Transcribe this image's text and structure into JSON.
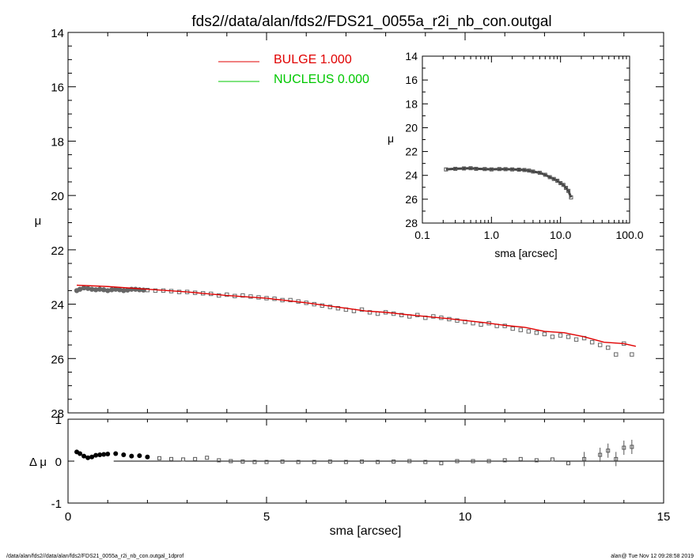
{
  "title": "fds2//data/alan/fds2/FDS21_0055a_r2i_nb_con.outgal",
  "footer_left": "/data/alan/fds2//data/alan/fds2/FDS21_0055a_r2i_nb_con.outgal_1dprof",
  "footer_right": "alan@  Tue Nov 12 09:28:58 2019",
  "legend": [
    {
      "label": "BULGE  1.000",
      "color": "#e00000"
    },
    {
      "label": "NUCLEUS  0.000",
      "color": "#00c800"
    }
  ],
  "chart_data": [
    {
      "type": "scatter",
      "panel": "main",
      "xlabel": "sma [arcsec]",
      "ylabel": "μ",
      "xlim": [
        0,
        15
      ],
      "ylim": [
        28,
        14
      ],
      "x_ticks": [
        "0",
        "5",
        "10",
        "15"
      ],
      "y_ticks": [
        "14",
        "16",
        "18",
        "20",
        "22",
        "24",
        "26",
        "28"
      ],
      "series": [
        {
          "role": "data",
          "color": "#666666",
          "x": [
            0.22,
            0.3,
            0.4,
            0.5,
            0.6,
            0.7,
            0.8,
            0.9,
            1.0,
            1.1,
            1.2,
            1.3,
            1.4,
            1.5,
            1.6,
            1.7,
            1.8,
            1.9,
            2.0,
            2.2,
            2.4,
            2.6,
            2.8,
            3.0,
            3.2,
            3.4,
            3.6,
            3.8,
            4.0,
            4.2,
            4.4,
            4.6,
            4.8,
            5.0,
            5.2,
            5.4,
            5.6,
            5.8,
            6.0,
            6.2,
            6.4,
            6.6,
            6.8,
            7.0,
            7.2,
            7.4,
            7.6,
            7.8,
            8.0,
            8.2,
            8.4,
            8.6,
            8.8,
            9.0,
            9.2,
            9.4,
            9.6,
            9.8,
            10.0,
            10.2,
            10.4,
            10.6,
            10.8,
            11.0,
            11.2,
            11.4,
            11.6,
            11.8,
            12.0,
            12.2,
            12.4,
            12.6,
            12.8,
            13.0,
            13.2,
            13.4,
            13.6,
            13.8,
            14.0,
            14.2
          ],
          "y": [
            23.5,
            23.45,
            23.4,
            23.42,
            23.45,
            23.47,
            23.45,
            23.47,
            23.5,
            23.47,
            23.45,
            23.47,
            23.5,
            23.48,
            23.45,
            23.45,
            23.47,
            23.48,
            23.48,
            23.5,
            23.5,
            23.52,
            23.55,
            23.55,
            23.58,
            23.6,
            23.62,
            23.68,
            23.65,
            23.7,
            23.68,
            23.72,
            23.75,
            23.78,
            23.8,
            23.85,
            23.85,
            23.9,
            23.95,
            24.0,
            24.05,
            24.1,
            24.15,
            24.2,
            24.25,
            24.2,
            24.3,
            24.35,
            24.3,
            24.35,
            24.4,
            24.45,
            24.4,
            24.5,
            24.45,
            24.5,
            24.55,
            24.6,
            24.65,
            24.7,
            24.75,
            24.7,
            24.8,
            24.8,
            24.9,
            24.95,
            25.0,
            25.05,
            25.1,
            25.2,
            25.15,
            25.2,
            25.3,
            25.25,
            25.4,
            25.5,
            25.6,
            25.85,
            25.45,
            25.85
          ]
        },
        {
          "role": "model",
          "name": "BULGE  1.000",
          "color": "#e00000",
          "x": [
            0.22,
            1.0,
            2.0,
            3.0,
            4.0,
            5.0,
            6.0,
            6.5,
            7.0,
            7.5,
            8.0,
            8.5,
            9.0,
            9.5,
            10.0,
            10.5,
            11.0,
            11.5,
            12.0,
            12.5,
            13.0,
            13.5,
            14.0,
            14.3
          ],
          "y": [
            23.3,
            23.35,
            23.45,
            23.55,
            23.68,
            23.78,
            23.95,
            24.05,
            24.15,
            24.25,
            24.3,
            24.38,
            24.45,
            24.52,
            24.6,
            24.68,
            24.78,
            24.85,
            25.0,
            25.05,
            25.2,
            25.4,
            25.45,
            25.55
          ]
        }
      ]
    },
    {
      "type": "scatter",
      "panel": "residual",
      "ylabel": "Δ μ",
      "xlim": [
        0,
        15
      ],
      "ylim": [
        -1,
        1
      ],
      "y_ticks": [
        "1",
        "0",
        "-1"
      ],
      "series": [
        {
          "role": "residual",
          "color": "#000000",
          "x": [
            0.22,
            0.3,
            0.4,
            0.5,
            0.6,
            0.7,
            0.8,
            0.9,
            1.0,
            1.2,
            1.4,
            1.6,
            1.8,
            2.0,
            2.3,
            2.6,
            2.9,
            3.2,
            3.5,
            3.8,
            4.1,
            4.4,
            4.7,
            5.0,
            5.4,
            5.8,
            6.2,
            6.6,
            7.0,
            7.4,
            7.8,
            8.2,
            8.6,
            9.0,
            9.4,
            9.8,
            10.2,
            10.6,
            11.0,
            11.4,
            11.8,
            12.2,
            12.6,
            13.0,
            13.4,
            13.6,
            13.8,
            14.0,
            14.2
          ],
          "y": [
            0.22,
            0.18,
            0.12,
            0.08,
            0.1,
            0.14,
            0.15,
            0.16,
            0.17,
            0.18,
            0.15,
            0.12,
            0.13,
            0.1,
            0.07,
            0.05,
            0.04,
            0.05,
            0.08,
            0.02,
            0.0,
            -0.01,
            -0.02,
            -0.02,
            -0.01,
            -0.02,
            -0.02,
            -0.01,
            -0.02,
            -0.01,
            -0.02,
            -0.01,
            0.0,
            -0.02,
            -0.05,
            0.0,
            0.0,
            0.0,
            0.02,
            0.05,
            0.02,
            0.04,
            -0.05,
            0.05,
            0.15,
            0.25,
            0.05,
            0.32,
            0.34
          ]
        }
      ]
    },
    {
      "type": "scatter",
      "panel": "inset",
      "xlabel": "sma [arcsec]",
      "ylabel": "μ",
      "x_scale": "log",
      "xlim": [
        0.1,
        100
      ],
      "ylim": [
        28,
        14
      ],
      "x_ticks": [
        "0.1",
        "1.0",
        "10.0",
        "100.0"
      ],
      "y_ticks": [
        "14",
        "16",
        "18",
        "20",
        "22",
        "24",
        "26",
        "28"
      ],
      "series": [
        {
          "role": "data",
          "color": "#666666",
          "x": [
            0.22,
            0.3,
            0.4,
            0.5,
            0.6,
            0.8,
            1.0,
            1.3,
            1.6,
            2.0,
            2.5,
            3.0,
            3.5,
            4.0,
            5.0,
            6.0,
            7.0,
            8.0,
            9.0,
            10.0,
            11.0,
            12.0,
            13.0,
            14.2
          ],
          "y": [
            23.5,
            23.45,
            23.42,
            23.4,
            23.45,
            23.47,
            23.5,
            23.47,
            23.48,
            23.5,
            23.52,
            23.55,
            23.6,
            23.68,
            23.78,
            23.95,
            24.15,
            24.3,
            24.45,
            24.65,
            24.8,
            25.05,
            25.3,
            25.85
          ]
        }
      ]
    }
  ]
}
